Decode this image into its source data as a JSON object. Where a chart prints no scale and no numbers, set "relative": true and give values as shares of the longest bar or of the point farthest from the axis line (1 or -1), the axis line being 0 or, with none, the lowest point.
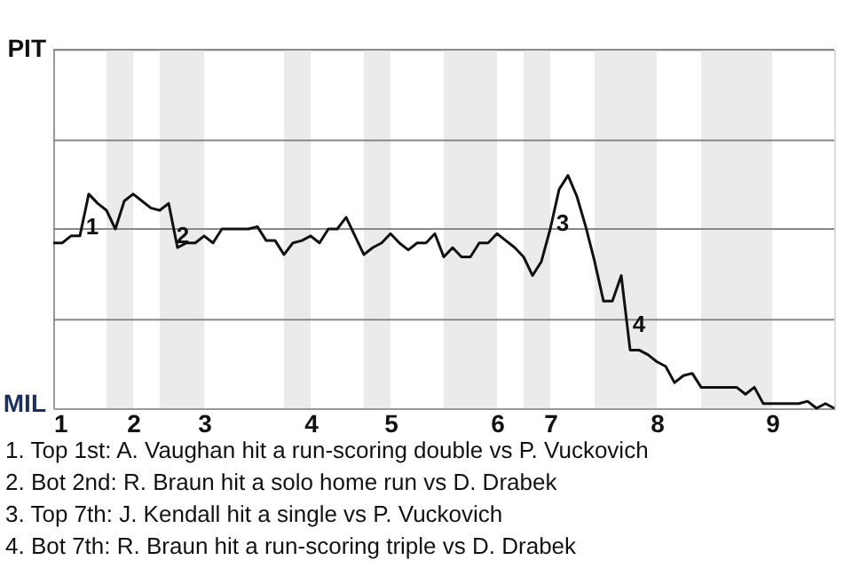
{
  "chart_data": {
    "type": "line",
    "relative": true,
    "categories": [
      "1",
      null,
      null,
      null,
      null,
      null,
      null,
      null,
      null,
      "2",
      null,
      null,
      null,
      null,
      null,
      null,
      null,
      "3",
      null,
      null,
      null,
      null,
      null,
      null,
      null,
      null,
      null,
      null,
      null,
      "4",
      null,
      null,
      null,
      null,
      null,
      null,
      null,
      null,
      "5",
      null,
      null,
      null,
      null,
      null,
      null,
      null,
      null,
      null,
      null,
      null,
      "6",
      null,
      null,
      null,
      null,
      null,
      "7",
      null,
      null,
      null,
      null,
      null,
      null,
      null,
      null,
      null,
      null,
      null,
      "8",
      null,
      null,
      null,
      null,
      null,
      null,
      null,
      null,
      null,
      null,
      null,
      null,
      "9",
      null,
      null,
      null,
      null,
      null,
      null,
      null
    ],
    "series": [
      {
        "color": "#111111",
        "values": [
          0.71,
          0.71,
          0.74,
          0.74,
          0.92,
          0.88,
          0.85,
          0.77,
          0.89,
          0.92,
          0.89,
          0.86,
          0.85,
          0.88,
          0.69,
          0.71,
          0.71,
          0.74,
          0.71,
          0.77,
          0.77,
          0.77,
          0.77,
          0.78,
          0.72,
          0.72,
          0.66,
          0.71,
          0.72,
          0.74,
          0.71,
          0.77,
          0.77,
          0.82,
          0.74,
          0.66,
          0.69,
          0.71,
          0.75,
          0.71,
          0.68,
          0.71,
          0.71,
          0.75,
          0.65,
          0.69,
          0.65,
          0.65,
          0.71,
          0.71,
          0.75,
          0.72,
          0.69,
          0.65,
          0.57,
          0.63,
          0.77,
          0.94,
          1,
          0.91,
          0.78,
          0.63,
          0.46,
          0.46,
          0.57,
          0.25,
          0.25,
          0.23,
          0.2,
          0.18,
          0.11,
          0.14,
          0.15,
          0.09,
          0.09,
          0.09,
          0.09,
          0.09,
          0.06,
          0.09,
          0.02,
          0.02,
          0.02,
          0.02,
          0.02,
          0.03,
          0,
          0.02,
          0
        ]
      }
    ],
    "line_style": "solid",
    "marker": "none",
    "ref_lines": [
      {
        "axis": "y",
        "value": 0.38,
        "color": "#888888"
      },
      {
        "axis": "y",
        "value": 0.77,
        "color": "#888888"
      },
      {
        "axis": "y",
        "value": 1.15,
        "color": "#888888"
      },
      {
        "axis": "y",
        "value": 1.54,
        "color": "#888888"
      }
    ],
    "annotations": [
      "PIT",
      "MIL",
      "1",
      "2",
      "3",
      "4",
      "1. Top 1st: A. Vaughan hit a run-scoring double vs P. Vuckovich",
      "2. Bot 2nd: R. Braun hit a solo home run vs D. Drabek",
      "3. Top 7th: J. Kendall hit a single vs P. Vuckovich",
      "4. Bot 7th: R. Braun hit a run-scoring triple vs D. Drabek"
    ]
  }
}
